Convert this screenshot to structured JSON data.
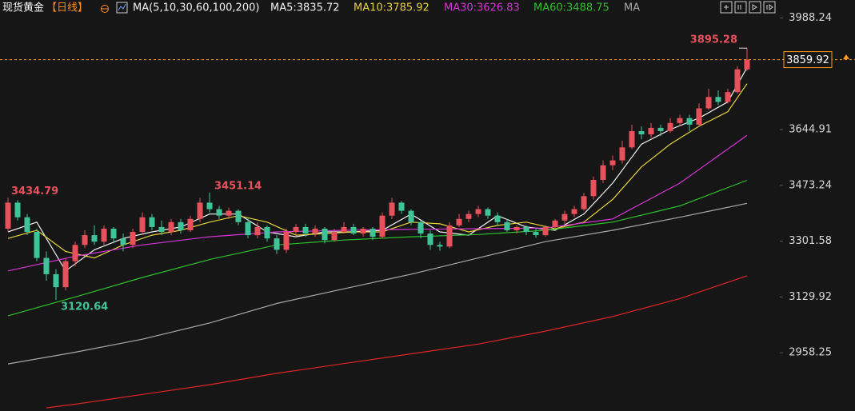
{
  "chart_data": {
    "type": "candlestick",
    "title": "现货黄金",
    "period": "【日线】",
    "indicator": "MA(5,10,30,60,100,200)",
    "up_color": "#e8505b",
    "down_color": "#3fc49a",
    "ylim": [
      2779.2,
      4043.3
    ],
    "yticks": [
      3988.24,
      3644.91,
      3473.24,
      3301.58,
      3129.92,
      2958.25
    ],
    "current_price": 3859.92,
    "open": [
      3340,
      3420,
      3375,
      3330,
      3250,
      3200,
      3160,
      3240,
      3290,
      3320,
      3300,
      3340,
      3310,
      3290,
      3330,
      3375,
      3345,
      3330,
      3360,
      3335,
      3370,
      3420,
      3400,
      3380,
      3395,
      3360,
      3320,
      3345,
      3310,
      3275,
      3330,
      3345,
      3325,
      3340,
      3305,
      3330,
      3345,
      3325,
      3340,
      3315,
      3380,
      3420,
      3395,
      3360,
      3325,
      3290,
      3285,
      3350,
      3370,
      3385,
      3400,
      3380,
      3360,
      3335,
      3345,
      3330,
      3320,
      3345,
      3365,
      3385,
      3400,
      3440,
      3490,
      3535,
      3550,
      3590,
      3640,
      3630,
      3650,
      3640,
      3665,
      3680,
      3660,
      3710,
      3745,
      3730,
      3760,
      3830
    ],
    "high": [
      3434.79,
      3428,
      3385,
      3340,
      3270,
      3215,
      3250,
      3300,
      3335,
      3350,
      3350,
      3345,
      3325,
      3340,
      3390,
      3385,
      3365,
      3370,
      3370,
      3380,
      3435,
      3451.14,
      3410,
      3405,
      3400,
      3375,
      3360,
      3350,
      3320,
      3340,
      3355,
      3355,
      3350,
      3345,
      3340,
      3360,
      3355,
      3345,
      3345,
      3390,
      3435,
      3425,
      3400,
      3365,
      3335,
      3300,
      3360,
      3385,
      3395,
      3410,
      3405,
      3390,
      3370,
      3350,
      3350,
      3340,
      3350,
      3370,
      3395,
      3410,
      3450,
      3500,
      3550,
      3565,
      3610,
      3660,
      3655,
      3665,
      3660,
      3680,
      3690,
      3690,
      3725,
      3770,
      3765,
      3770,
      3840,
      3895.28
    ],
    "low": [
      3330,
      3365,
      3320,
      3240,
      3180,
      3120.64,
      3150,
      3225,
      3280,
      3290,
      3290,
      3295,
      3270,
      3280,
      3320,
      3335,
      3320,
      3320,
      3325,
      3330,
      3360,
      3390,
      3370,
      3370,
      3350,
      3310,
      3310,
      3300,
      3262,
      3265,
      3320,
      3315,
      3315,
      3295,
      3300,
      3325,
      3320,
      3315,
      3305,
      3310,
      3370,
      3385,
      3350,
      3310,
      3275,
      3272,
      3280,
      3345,
      3360,
      3375,
      3370,
      3350,
      3330,
      3325,
      3320,
      3312,
      3315,
      3340,
      3355,
      3375,
      3395,
      3430,
      3480,
      3520,
      3540,
      3585,
      3615,
      3620,
      3625,
      3635,
      3655,
      3640,
      3655,
      3705,
      3720,
      3725,
      3755,
      3825
    ],
    "close": [
      3420,
      3375,
      3330,
      3250,
      3200,
      3160,
      3240,
      3290,
      3320,
      3300,
      3340,
      3310,
      3290,
      3330,
      3375,
      3345,
      3330,
      3360,
      3335,
      3370,
      3420,
      3400,
      3380,
      3395,
      3360,
      3320,
      3345,
      3310,
      3275,
      3330,
      3345,
      3325,
      3340,
      3305,
      3330,
      3345,
      3325,
      3340,
      3315,
      3380,
      3420,
      3395,
      3360,
      3325,
      3290,
      3285,
      3350,
      3370,
      3385,
      3400,
      3380,
      3360,
      3335,
      3345,
      3330,
      3320,
      3345,
      3365,
      3385,
      3400,
      3440,
      3490,
      3535,
      3550,
      3590,
      3640,
      3630,
      3650,
      3640,
      3665,
      3680,
      3660,
      3710,
      3745,
      3730,
      3760,
      3830,
      3859.92
    ],
    "series": [
      {
        "name": "MA5:3835.72",
        "color": "#f2f2f2",
        "x": [
          0,
          3,
          6,
          9,
          12,
          15,
          18,
          21,
          24,
          27,
          30,
          33,
          36,
          39,
          42,
          45,
          48,
          51,
          54,
          57,
          60,
          63,
          66,
          69,
          72,
          75,
          77
        ],
        "values": [
          3330,
          3360,
          3210,
          3275,
          3310,
          3330,
          3345,
          3385,
          3385,
          3330,
          3315,
          3330,
          3330,
          3335,
          3385,
          3330,
          3320,
          3380,
          3345,
          3335,
          3385,
          3480,
          3600,
          3645,
          3680,
          3730,
          3835.72
        ]
      },
      {
        "name": "MA10:3785.92",
        "color": "#e6d23a",
        "x": [
          0,
          3,
          6,
          9,
          12,
          15,
          18,
          21,
          24,
          27,
          30,
          33,
          36,
          39,
          42,
          45,
          48,
          51,
          54,
          57,
          60,
          63,
          66,
          69,
          72,
          75,
          77
        ],
        "values": [
          3310,
          3335,
          3270,
          3250,
          3290,
          3320,
          3335,
          3360,
          3380,
          3360,
          3320,
          3325,
          3330,
          3330,
          3360,
          3355,
          3330,
          3350,
          3360,
          3340,
          3360,
          3430,
          3530,
          3600,
          3655,
          3700,
          3785.92
        ]
      },
      {
        "name": "MA30:3626.83",
        "color": "#d633d6",
        "x": [
          0,
          7,
          14,
          21,
          28,
          35,
          42,
          49,
          56,
          63,
          70,
          77
        ],
        "values": [
          3210,
          3255,
          3290,
          3315,
          3330,
          3335,
          3338,
          3340,
          3342,
          3370,
          3480,
          3626.83
        ]
      },
      {
        "name": "MA60:3488.75",
        "color": "#2cc02c",
        "x": [
          0,
          7,
          14,
          21,
          28,
          35,
          42,
          49,
          56,
          63,
          70,
          77
        ],
        "values": [
          3072,
          3130,
          3190,
          3245,
          3290,
          3305,
          3315,
          3322,
          3335,
          3360,
          3410,
          3488.75
        ]
      },
      {
        "name": "MA",
        "color": "#a8a8a8",
        "x": [
          0,
          7,
          14,
          21,
          28,
          35,
          42,
          49,
          56,
          63,
          70,
          77
        ],
        "values": [
          2924,
          2960,
          3000,
          3050,
          3110,
          3155,
          3200,
          3250,
          3300,
          3335,
          3375,
          3418
        ]
      },
      {
        "color": "#e02424",
        "x": [
          4,
          7,
          14,
          21,
          28,
          35,
          42,
          49,
          56,
          63,
          70,
          77
        ],
        "values": [
          2789,
          2800,
          2830,
          2860,
          2895,
          2925,
          2955,
          2985,
          3025,
          3070,
          3125,
          3195
        ]
      }
    ]
  }
}
